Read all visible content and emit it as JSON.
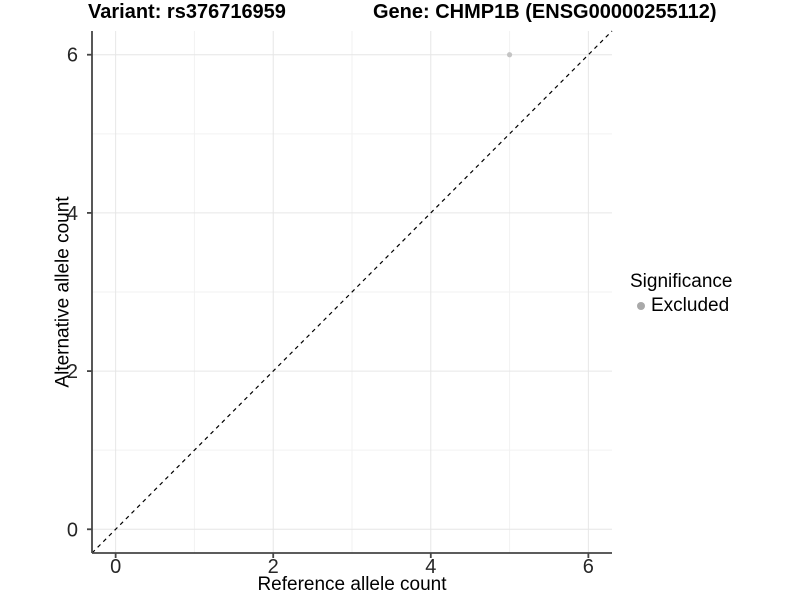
{
  "figure": {
    "background": "#ffffff"
  },
  "chart_data": {
    "type": "scatter",
    "title_left": "Variant: rs376716959",
    "title_right": "Gene: CHMP1B (ENSG00000255112)",
    "xlabel": "Reference allele count",
    "ylabel": "Alternative allele count",
    "xlim": [
      -0.3,
      6.3
    ],
    "ylim": [
      -0.3,
      6.3
    ],
    "xticks": [
      0,
      2,
      4,
      6
    ],
    "yticks": [
      0,
      2,
      4,
      6
    ],
    "xminor": [
      1,
      3,
      5
    ],
    "yminor": [
      1,
      3,
      5
    ],
    "grid": "major+minor",
    "legend_position": "right",
    "points": [
      {
        "x": 5,
        "y": 6,
        "significance": "Excluded",
        "size": 2.6
      }
    ],
    "identity_line": {
      "style": "dashed",
      "slope": 1,
      "intercept": 0,
      "from": -0.3,
      "to": 6.3
    },
    "legend": {
      "title": "Significance",
      "entries": [
        {
          "label": "Excluded",
          "marker": "circle",
          "color": "#a9a9a9"
        }
      ]
    },
    "colors": {
      "point": "#c4c4c4",
      "identity_line": "#000000",
      "grid_major": "#e6e6e6",
      "grid_minor": "#f2f2f2",
      "axis": "#454545",
      "tick_text": "#262626",
      "title_text": "#000000"
    }
  }
}
